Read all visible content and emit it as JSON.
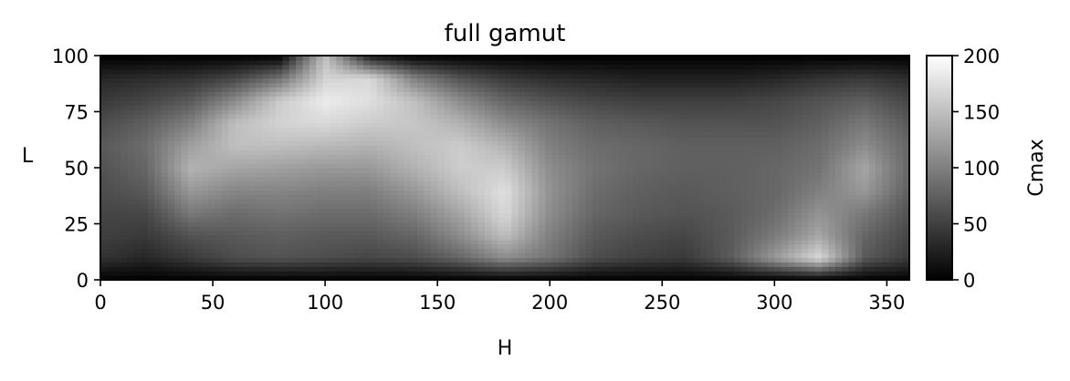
{
  "chart_data": {
    "type": "heatmap",
    "title": "full gamut",
    "xlabel": "H",
    "ylabel": "L",
    "colorbar_label": "Cmax",
    "colormap": "gray",
    "xlim": [
      0,
      360
    ],
    "ylim": [
      0,
      100
    ],
    "vlim": [
      0,
      200
    ],
    "x_ticks": [
      0,
      50,
      100,
      150,
      200,
      250,
      300,
      350
    ],
    "y_ticks": [
      0,
      25,
      50,
      75,
      100
    ],
    "colorbar_ticks": [
      0,
      50,
      100,
      150,
      200
    ],
    "grid": false,
    "h_grid": [
      0,
      20,
      40,
      60,
      80,
      100,
      120,
      140,
      160,
      180,
      200,
      220,
      240,
      260,
      280,
      300,
      320,
      340,
      360
    ],
    "l_grid": [
      0,
      10,
      20,
      30,
      40,
      50,
      60,
      70,
      80,
      90,
      100
    ],
    "cmax": [
      [
        0,
        0,
        0,
        0,
        0,
        0,
        0,
        0,
        0,
        0,
        0,
        0,
        0,
        0,
        0,
        0,
        0,
        0,
        0
      ],
      [
        40,
        30,
        45,
        60,
        65,
        60,
        55,
        60,
        80,
        110,
        90,
        60,
        50,
        45,
        70,
        120,
        170,
        70,
        45
      ],
      [
        50,
        45,
        65,
        70,
        75,
        70,
        70,
        80,
        110,
        150,
        100,
        70,
        60,
        55,
        70,
        95,
        130,
        80,
        55
      ],
      [
        55,
        55,
        95,
        85,
        90,
        85,
        85,
        100,
        130,
        170,
        110,
        80,
        70,
        65,
        70,
        85,
        115,
        95,
        65
      ],
      [
        60,
        70,
        120,
        105,
        105,
        100,
        100,
        120,
        150,
        175,
        115,
        85,
        75,
        70,
        75,
        80,
        100,
        120,
        75
      ],
      [
        65,
        80,
        140,
        130,
        125,
        120,
        120,
        140,
        160,
        160,
        110,
        90,
        80,
        75,
        75,
        80,
        90,
        130,
        80
      ],
      [
        70,
        85,
        125,
        150,
        150,
        145,
        140,
        150,
        160,
        140,
        100,
        85,
        80,
        75,
        75,
        75,
        85,
        110,
        80
      ],
      [
        60,
        75,
        100,
        150,
        165,
        170,
        160,
        155,
        140,
        110,
        90,
        75,
        70,
        65,
        65,
        65,
        75,
        95,
        70
      ],
      [
        45,
        55,
        70,
        110,
        160,
        185,
        175,
        150,
        110,
        80,
        65,
        55,
        50,
        50,
        50,
        55,
        65,
        75,
        55
      ],
      [
        30,
        35,
        40,
        55,
        90,
        165,
        170,
        100,
        65,
        45,
        35,
        30,
        25,
        25,
        25,
        30,
        40,
        45,
        35
      ],
      [
        0,
        0,
        0,
        0,
        0,
        150,
        20,
        0,
        0,
        0,
        0,
        0,
        0,
        0,
        0,
        0,
        0,
        0,
        0
      ]
    ]
  }
}
